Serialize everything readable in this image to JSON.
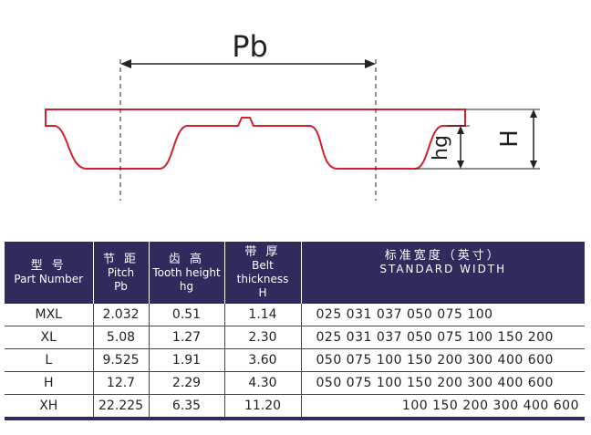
{
  "diagram": {
    "pitch_label": "Pb",
    "tooth_height_label": "hg",
    "thickness_label": "H"
  },
  "table": {
    "header": [
      [
        "型 号",
        "Part Number"
      ],
      [
        "节 距",
        "Pitch",
        "Pb"
      ],
      [
        "齿 高",
        "Tooth height",
        "hg"
      ],
      [
        "带 厚",
        "Belt thickness",
        "H"
      ],
      [
        "标准宽度（英寸）",
        "STANDARD WIDTH"
      ]
    ],
    "rows": [
      [
        "MXL",
        "2.032",
        "0.51",
        "1.14",
        "025 031 037 050 075 100"
      ],
      [
        "XL",
        "5.08",
        "1.27",
        "2.30",
        "025 031 037 050 075 100 150 200"
      ],
      [
        "L",
        "9.525",
        "1.91",
        "3.60",
        "050 075 100 150 200 300 400 600"
      ],
      [
        "H",
        "12.7",
        "2.29",
        "4.30",
        "050 075 100 150 200 300 400 600"
      ],
      [
        "XH",
        "22.225",
        "6.35",
        "11.20",
        "100 150 200 300 400 600"
      ]
    ]
  }
}
